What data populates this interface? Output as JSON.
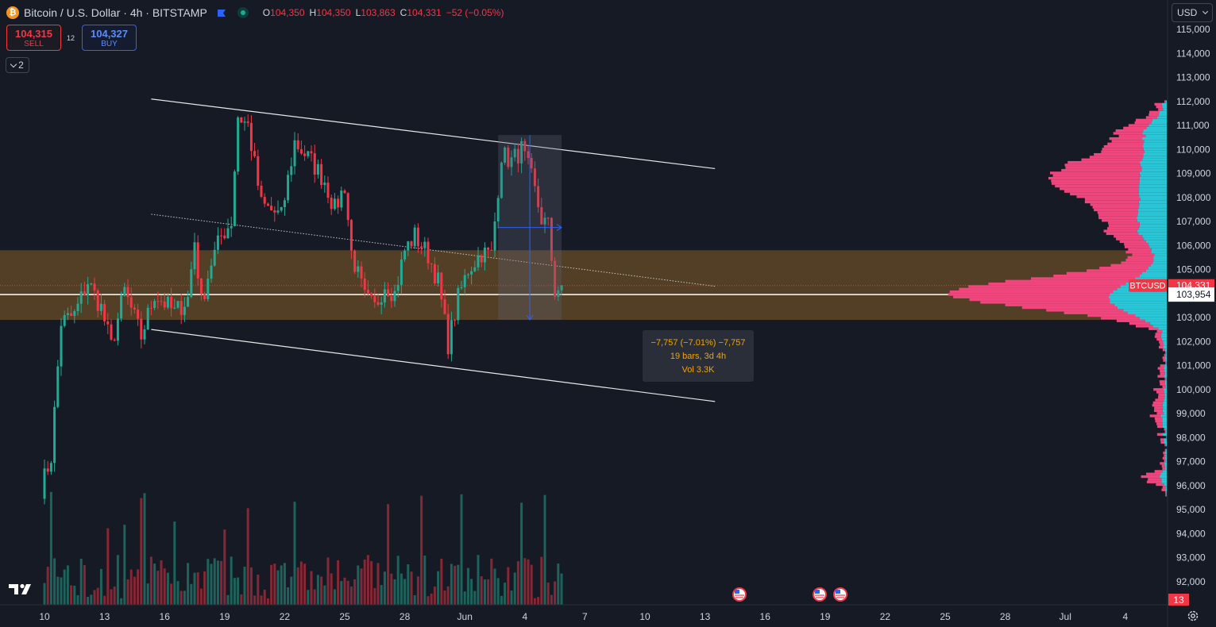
{
  "header": {
    "symbol_title": "Bitcoin / U.S. Dollar · 4h · BITSTAMP",
    "logo_letter": "₿",
    "ohlc": [
      {
        "key": "O",
        "value": "104,350"
      },
      {
        "key": "H",
        "value": "104,350"
      },
      {
        "key": "L",
        "value": "103,863"
      },
      {
        "key": "C",
        "value": "104,331"
      }
    ],
    "change": "−52 (−0.05%)"
  },
  "trade": {
    "sell_price": "104,315",
    "sell_label": "SELL",
    "buy_price": "104,327",
    "buy_label": "BUY",
    "spread": "12"
  },
  "indicators_toggle": "2",
  "currency": "USD",
  "measure": {
    "line1": "−7,757 (−7.01%) −7,757",
    "line2": "19 bars, 3d 4h",
    "line3": "Vol 3.3K"
  },
  "colors": {
    "up": "#22ab94",
    "down": "#f23645",
    "zone": "#f0a12a",
    "profile_pink": "#f0457d",
    "profile_cyan": "#28c6d6"
  },
  "chart_data": {
    "type": "candlestick",
    "symbol": "BTCUSD",
    "interval": "4h",
    "y_axis_ticks": [
      "115,000",
      "114,000",
      "113,000",
      "112,000",
      "111,000",
      "110,000",
      "109,000",
      "108,000",
      "107,000",
      "106,000",
      "105,000",
      "104,000",
      "103,000",
      "102,000",
      "101,000",
      "100,000",
      "99,000",
      "98,000",
      "97,000",
      "96,000",
      "95,000",
      "94,000",
      "93,000",
      "92,000"
    ],
    "y_tick_values": [
      115000,
      114000,
      113000,
      112000,
      111000,
      110000,
      109000,
      108000,
      107000,
      106000,
      105000,
      104000,
      103000,
      102000,
      101000,
      100000,
      99000,
      98000,
      97000,
      96000,
      95000,
      94000,
      93000,
      92000
    ],
    "ylim": [
      91500,
      115500
    ],
    "x_axis_ticks": [
      "10",
      "13",
      "16",
      "19",
      "22",
      "25",
      "28",
      "Jun",
      "4",
      "7",
      "10",
      "13",
      "16",
      "19",
      "22",
      "25",
      "28",
      "Jul",
      "4"
    ],
    "x_tick_index": [
      1,
      19,
      37,
      55,
      73,
      91,
      109,
      127,
      145,
      163,
      181,
      199,
      217,
      235,
      253,
      271,
      289,
      307,
      325
    ],
    "last_price_label": "BTCUSD",
    "last_price": "104,331",
    "last_price_value": 104331,
    "crosshair_price": "103,954",
    "crosshair_price_value": 103954,
    "countdown_label": "13",
    "zone": {
      "low": 102900,
      "high": 105800
    },
    "channel": {
      "upper": [
        {
          "i": 33,
          "y": 112100
        },
        {
          "i": 202,
          "y": 109200
        }
      ],
      "lower": [
        {
          "i": 33,
          "y": 102500
        },
        {
          "i": 202,
          "y": 99500
        }
      ],
      "mid": [
        {
          "i": 33,
          "y": 107300
        },
        {
          "i": 202,
          "y": 104300
        }
      ]
    },
    "measure_range": {
      "i0": 137,
      "i1": 156,
      "top": 110600,
      "bottom": 102900
    },
    "waypoints": [
      {
        "i": 0,
        "p": 95900
      },
      {
        "i": 3,
        "p": 97200
      },
      {
        "i": 6,
        "p": 102800
      },
      {
        "i": 10,
        "p": 103100
      },
      {
        "i": 14,
        "p": 104500
      },
      {
        "i": 18,
        "p": 103400
      },
      {
        "i": 21,
        "p": 101800
      },
      {
        "i": 25,
        "p": 104100
      },
      {
        "i": 30,
        "p": 102200
      },
      {
        "i": 34,
        "p": 104000
      },
      {
        "i": 40,
        "p": 103200
      },
      {
        "i": 44,
        "p": 103800
      },
      {
        "i": 46,
        "p": 106200
      },
      {
        "i": 48,
        "p": 103600
      },
      {
        "i": 51,
        "p": 105300
      },
      {
        "i": 54,
        "p": 106400
      },
      {
        "i": 57,
        "p": 107000
      },
      {
        "i": 59,
        "p": 111400
      },
      {
        "i": 62,
        "p": 111000
      },
      {
        "i": 66,
        "p": 107700
      },
      {
        "i": 72,
        "p": 107200
      },
      {
        "i": 76,
        "p": 110300
      },
      {
        "i": 81,
        "p": 109500
      },
      {
        "i": 85,
        "p": 108700
      },
      {
        "i": 88,
        "p": 107500
      },
      {
        "i": 91,
        "p": 108500
      },
      {
        "i": 93,
        "p": 105700
      },
      {
        "i": 97,
        "p": 103800
      },
      {
        "i": 100,
        "p": 103400
      },
      {
        "i": 103,
        "p": 104400
      },
      {
        "i": 106,
        "p": 104000
      },
      {
        "i": 109,
        "p": 105800
      },
      {
        "i": 112,
        "p": 106400
      },
      {
        "i": 116,
        "p": 105600
      },
      {
        "i": 119,
        "p": 104500
      },
      {
        "i": 122,
        "p": 101900
      },
      {
        "i": 125,
        "p": 103800
      },
      {
        "i": 128,
        "p": 105000
      },
      {
        "i": 132,
        "p": 105700
      },
      {
        "i": 135,
        "p": 105600
      },
      {
        "i": 138,
        "p": 109800
      },
      {
        "i": 141,
        "p": 109500
      },
      {
        "i": 144,
        "p": 110000
      },
      {
        "i": 147,
        "p": 108800
      },
      {
        "i": 150,
        "p": 107100
      },
      {
        "i": 152,
        "p": 106800
      },
      {
        "i": 154,
        "p": 104100
      },
      {
        "i": 156,
        "p": 104331
      }
    ]
  }
}
